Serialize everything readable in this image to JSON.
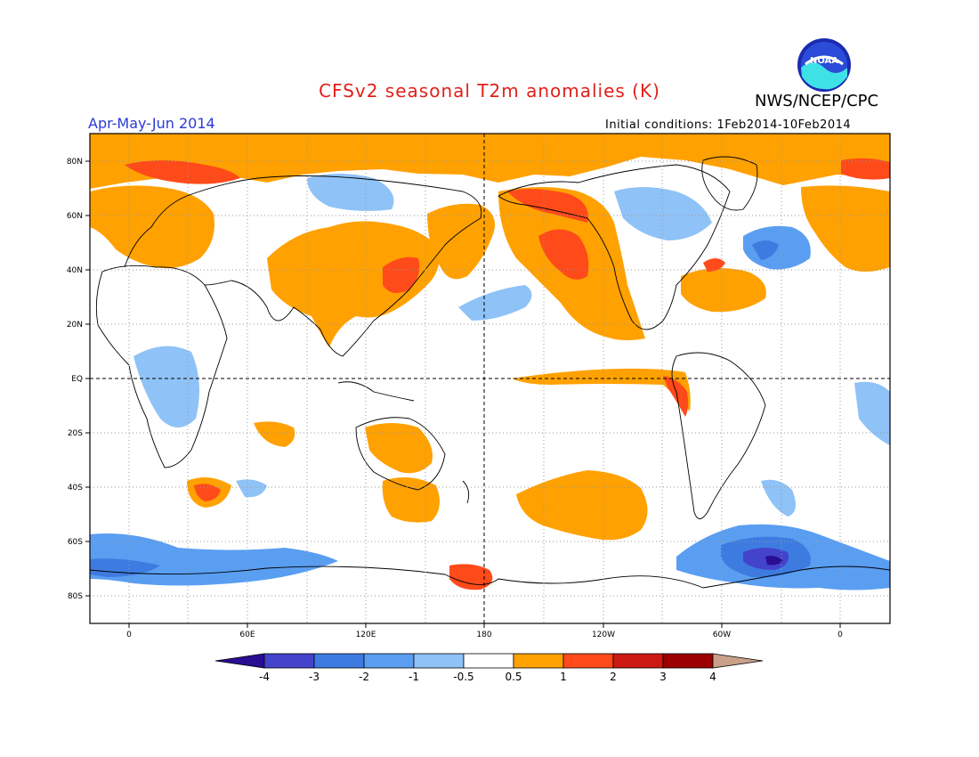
{
  "header": {
    "title": "CFSv2 seasonal T2m anomalies (K)",
    "agency": "NWS/NCEP/CPC",
    "logo_text": "NOAA",
    "season": "Apr-May-Jun 2014",
    "initial_conditions": "Initial conditions: 1Feb2014-10Feb2014"
  },
  "map": {
    "lat_labels": [
      "80N",
      "60N",
      "40N",
      "20N",
      "EQ",
      "20S",
      "40S",
      "60S",
      "80S"
    ],
    "lon_labels": [
      "0",
      "60E",
      "120E",
      "180",
      "120W",
      "60W",
      "0"
    ],
    "projection": "cylindrical equidistant, centered 180",
    "grid": "dotted",
    "colors": {
      "neg4": "#2a0d92",
      "neg3": "#4343cc",
      "neg2": "#3d7be0",
      "neg1": "#5a9ef2",
      "neg05": "#8fc2f7",
      "zero": "#ffffff",
      "pos05": "#ffa100",
      "pos1": "#ff4a1a",
      "pos2": "#cc1a12",
      "pos3": "#9c0000",
      "pos4": "#c9a08a",
      "pos5": "#7a4a3a"
    }
  },
  "colorbar": {
    "labels": [
      "-4",
      "-3",
      "-2",
      "-1",
      "-0.5",
      "0.5",
      "1",
      "2",
      "3",
      "4"
    ]
  }
}
